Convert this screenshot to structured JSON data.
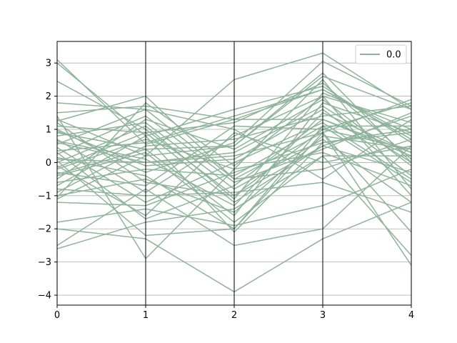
{
  "chart_data": {
    "type": "line",
    "subtype": "parallel-coordinates",
    "title": "",
    "xlabel": "",
    "ylabel": "",
    "x": [
      0,
      1,
      2,
      3,
      4
    ],
    "xticks": [
      "0",
      "1",
      "2",
      "3",
      "4"
    ],
    "yticks": [
      -4,
      -3,
      -2,
      -1,
      0,
      1,
      2,
      3
    ],
    "ytick_labels": [
      "−4",
      "−3",
      "−2",
      "−1",
      "0",
      "1",
      "2",
      "3"
    ],
    "xlim": [
      0,
      4
    ],
    "ylim": [
      -4.3,
      3.65
    ],
    "grid": "horizontal",
    "legend": {
      "position": "top-right",
      "entries": [
        "0.0"
      ]
    },
    "line_color": "#8fb39a",
    "series": [
      {
        "name": "0.0",
        "values": [
          3.1,
          0.55,
          1.3,
          1.3,
          0.2
        ]
      },
      {
        "name": "0.0",
        "values": [
          3.0,
          0.8,
          -2.1,
          0.6,
          1.0
        ]
      },
      {
        "name": "0.0",
        "values": [
          2.45,
          1.0,
          -1.0,
          1.0,
          0.4
        ]
      },
      {
        "name": "0.0",
        "values": [
          1.8,
          1.6,
          -0.5,
          0.9,
          1.9
        ]
      },
      {
        "name": "0.0",
        "values": [
          1.5,
          1.7,
          1.3,
          2.2,
          0.7
        ]
      },
      {
        "name": "0.0",
        "values": [
          1.4,
          -2.9,
          -0.2,
          0.3,
          -0.7
        ]
      },
      {
        "name": "0.0",
        "values": [
          1.3,
          0.2,
          0.5,
          2.6,
          1.6
        ]
      },
      {
        "name": "0.0",
        "values": [
          1.2,
          -0.6,
          -1.0,
          0.5,
          -0.3
        ]
      },
      {
        "name": "0.0",
        "values": [
          1.1,
          0.9,
          1.2,
          2.4,
          0.1
        ]
      },
      {
        "name": "0.0",
        "values": [
          1.0,
          -0.3,
          0.6,
          3.05,
          1.7
        ]
      },
      {
        "name": "0.0",
        "values": [
          0.9,
          0.4,
          -1.6,
          1.8,
          0.9
        ]
      },
      {
        "name": "0.0",
        "values": [
          0.8,
          1.2,
          -0.8,
          0.7,
          -1.2
        ]
      },
      {
        "name": "0.0",
        "values": [
          0.7,
          -0.9,
          0.8,
          2.0,
          1.2
        ]
      },
      {
        "name": "0.0",
        "values": [
          0.65,
          0.1,
          -1.3,
          1.5,
          0.3
        ]
      },
      {
        "name": "0.0",
        "values": [
          0.55,
          1.6,
          1.0,
          -0.5,
          1.3
        ]
      },
      {
        "name": "0.0",
        "values": [
          0.45,
          -1.2,
          0.0,
          1.2,
          -0.5
        ]
      },
      {
        "name": "0.0",
        "values": [
          0.35,
          0.6,
          1.4,
          2.2,
          0.8
        ]
      },
      {
        "name": "0.0",
        "values": [
          0.25,
          1.4,
          -0.6,
          0.4,
          1.5
        ]
      },
      {
        "name": "0.0",
        "values": [
          0.15,
          -0.4,
          -2.0,
          0.9,
          -2.1
        ]
      },
      {
        "name": "0.0",
        "values": [
          0.1,
          0.0,
          0.3,
          1.7,
          0.0
        ]
      },
      {
        "name": "0.0",
        "values": [
          0.0,
          1.1,
          -1.1,
          2.1,
          1.0
        ]
      },
      {
        "name": "0.0",
        "values": [
          -0.1,
          -1.6,
          0.9,
          0.0,
          0.5
        ]
      },
      {
        "name": "0.0",
        "values": [
          -0.2,
          0.7,
          -0.2,
          2.5,
          -0.8
        ]
      },
      {
        "name": "0.0",
        "values": [
          -0.3,
          -0.7,
          1.1,
          1.0,
          1.8
        ]
      },
      {
        "name": "0.0",
        "values": [
          -0.4,
          0.3,
          -1.8,
          0.2,
          0.2
        ]
      },
      {
        "name": "0.0",
        "values": [
          -0.5,
          1.3,
          0.4,
          1.9,
          -0.1
        ]
      },
      {
        "name": "0.0",
        "values": [
          -0.6,
          -0.2,
          -0.4,
          1.1,
          1.1
        ]
      },
      {
        "name": "0.0",
        "values": [
          -0.7,
          0.8,
          1.6,
          2.3,
          0.6
        ]
      },
      {
        "name": "0.0",
        "values": [
          -0.8,
          -1.0,
          -0.9,
          -0.6,
          -1.5
        ]
      },
      {
        "name": "0.0",
        "values": [
          -0.9,
          0.5,
          0.7,
          1.4,
          1.7
        ]
      },
      {
        "name": "0.0",
        "values": [
          -1.0,
          -0.5,
          -1.5,
          0.8,
          0.4
        ]
      },
      {
        "name": "0.0",
        "values": [
          -1.05,
          1.8,
          -0.1,
          2.0,
          -1.0
        ]
      },
      {
        "name": "0.0",
        "values": [
          -1.1,
          0.2,
          2.5,
          3.3,
          1.6
        ]
      },
      {
        "name": "0.0",
        "values": [
          -1.2,
          -1.3,
          -0.3,
          0.6,
          0.9
        ]
      },
      {
        "name": "0.0",
        "values": [
          -1.8,
          -1.4,
          -1.9,
          -1.3,
          -0.2
        ]
      },
      {
        "name": "0.0",
        "values": [
          -2.0,
          -2.3,
          -3.9,
          -2.3,
          -1.2
        ]
      },
      {
        "name": "0.0",
        "values": [
          -2.5,
          -0.8,
          -2.5,
          -2.0,
          0.5
        ]
      },
      {
        "name": "0.0",
        "values": [
          -2.6,
          -1.8,
          -1.4,
          0.2,
          -2.8
        ]
      },
      {
        "name": "0.0",
        "values": [
          0.6,
          0.0,
          0.2,
          0.9,
          -3.1
        ]
      },
      {
        "name": "0.0",
        "values": [
          0.3,
          -1.7,
          -0.7,
          1.3,
          0.3
        ]
      },
      {
        "name": "0.0",
        "values": [
          -0.15,
          0.9,
          -1.2,
          0.5,
          1.4
        ]
      },
      {
        "name": "0.0",
        "values": [
          0.95,
          -0.1,
          0.1,
          1.6,
          -0.4
        ]
      },
      {
        "name": "0.0",
        "values": [
          1.25,
          2.0,
          -0.5,
          -0.2,
          0.7
        ]
      },
      {
        "name": "0.0",
        "values": [
          0.05,
          -2.2,
          -2.0,
          1.1,
          -0.6
        ]
      },
      {
        "name": "0.0",
        "values": [
          -0.35,
          0.4,
          0.5,
          2.7,
          0.0
        ]
      }
    ]
  }
}
